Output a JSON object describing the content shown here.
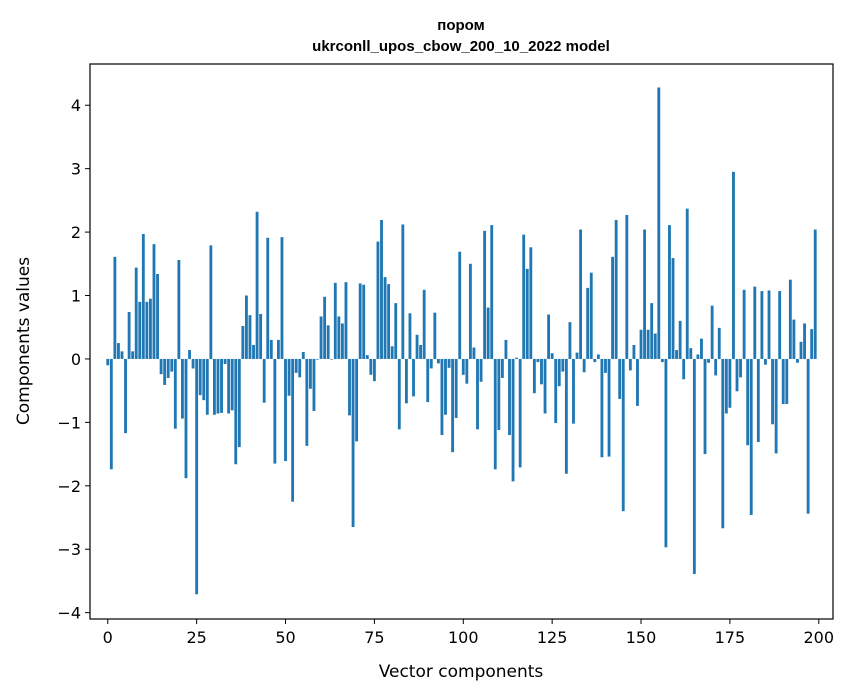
{
  "chart_data": {
    "type": "bar",
    "title": "пором",
    "subtitle": "ukrconll_upos_cbow_200_10_2022 model",
    "xlabel": "Vector components",
    "ylabel": "Components values",
    "xlim": [
      -5,
      204
    ],
    "ylim": [
      -4.1,
      4.65
    ],
    "xticks": [
      0,
      25,
      50,
      75,
      100,
      125,
      150,
      175,
      200
    ],
    "yticks": [
      -4,
      -3,
      -2,
      -1,
      0,
      1,
      2,
      3,
      4
    ],
    "xtick_labels": [
      "0",
      "25",
      "50",
      "75",
      "100",
      "125",
      "150",
      "175",
      "200"
    ],
    "ytick_labels": [
      "−4",
      "−3",
      "−2",
      "−1",
      "0",
      "1",
      "2",
      "3",
      "4"
    ],
    "bar_color": "#1f77b4",
    "grid": false,
    "x": [
      0,
      1,
      2,
      3,
      4,
      5,
      6,
      7,
      8,
      9,
      10,
      11,
      12,
      13,
      14,
      15,
      16,
      17,
      18,
      19,
      20,
      21,
      22,
      23,
      24,
      25,
      26,
      27,
      28,
      29,
      30,
      31,
      32,
      33,
      34,
      35,
      36,
      37,
      38,
      39,
      40,
      41,
      42,
      43,
      44,
      45,
      46,
      47,
      48,
      49,
      50,
      51,
      52,
      53,
      54,
      55,
      56,
      57,
      58,
      59,
      60,
      61,
      62,
      63,
      64,
      65,
      66,
      67,
      68,
      69,
      70,
      71,
      72,
      73,
      74,
      75,
      76,
      77,
      78,
      79,
      80,
      81,
      82,
      83,
      84,
      85,
      86,
      87,
      88,
      89,
      90,
      91,
      92,
      93,
      94,
      95,
      96,
      97,
      98,
      99,
      100,
      101,
      102,
      103,
      104,
      105,
      106,
      107,
      108,
      109,
      110,
      111,
      112,
      113,
      114,
      115,
      116,
      117,
      118,
      119,
      120,
      121,
      122,
      123,
      124,
      125,
      126,
      127,
      128,
      129,
      130,
      131,
      132,
      133,
      134,
      135,
      136,
      137,
      138,
      139,
      140,
      141,
      142,
      143,
      144,
      145,
      146,
      147,
      148,
      149,
      150,
      151,
      152,
      153,
      154,
      155,
      156,
      157,
      158,
      159,
      160,
      161,
      162,
      163,
      164,
      165,
      166,
      167,
      168,
      169,
      170,
      171,
      172,
      173,
      174,
      175,
      176,
      177,
      178,
      179,
      180,
      181,
      182,
      183,
      184,
      185,
      186,
      187,
      188,
      189,
      190,
      191,
      192,
      193,
      194,
      195,
      196,
      197,
      198,
      199
    ],
    "values": [
      -0.1,
      -1.74,
      1.61,
      0.25,
      0.12,
      -1.17,
      0.74,
      0.12,
      1.44,
      0.9,
      1.97,
      0.9,
      0.95,
      1.81,
      1.34,
      -0.24,
      -0.41,
      -0.3,
      -0.2,
      -1.1,
      1.56,
      -0.94,
      -1.88,
      0.14,
      -0.15,
      -3.71,
      -0.57,
      -0.65,
      -0.88,
      1.79,
      -0.88,
      -0.86,
      -0.85,
      -0.08,
      -0.86,
      -0.81,
      -1.66,
      -1.39,
      0.52,
      1.0,
      0.69,
      0.22,
      2.32,
      0.71,
      -0.69,
      1.91,
      0.3,
      -1.65,
      0.3,
      1.92,
      -1.61,
      -0.58,
      -2.25,
      -0.22,
      -0.29,
      0.11,
      -1.37,
      -0.47,
      -0.82,
      -0.01,
      0.67,
      0.98,
      0.53,
      -0.01,
      1.2,
      0.67,
      0.56,
      1.21,
      -0.89,
      -2.65,
      -1.3,
      1.19,
      1.17,
      0.06,
      -0.25,
      -0.35,
      1.85,
      2.19,
      1.29,
      1.18,
      0.2,
      0.88,
      -1.11,
      2.12,
      -0.7,
      0.72,
      -0.59,
      0.38,
      0.22,
      1.09,
      -0.68,
      -0.15,
      0.73,
      -0.07,
      -1.2,
      -0.88,
      -0.14,
      -1.47,
      -0.93,
      1.69,
      -0.25,
      -0.39,
      1.5,
      0.18,
      -1.11,
      -0.36,
      2.02,
      0.81,
      2.11,
      -1.74,
      -1.12,
      -0.3,
      0.3,
      -1.2,
      -1.93,
      0.02,
      -1.71,
      1.96,
      1.42,
      1.76,
      -0.54,
      -0.05,
      -0.4,
      -0.86,
      0.7,
      0.09,
      -1.01,
      -0.43,
      -0.2,
      -1.81,
      0.58,
      -1.02,
      0.1,
      2.04,
      -0.21,
      1.12,
      1.36,
      -0.05,
      0.07,
      -1.55,
      -0.22,
      -1.54,
      1.61,
      2.19,
      -0.63,
      -2.4,
      2.27,
      -0.18,
      0.22,
      -0.74,
      0.46,
      2.04,
      0.46,
      0.88,
      0.4,
      4.28,
      -0.05,
      -2.97,
      2.11,
      1.59,
      0.14,
      0.6,
      -0.32,
      2.37,
      0.17,
      -3.39,
      0.07,
      0.32,
      -1.5,
      -0.06,
      0.84,
      -0.26,
      0.49,
      -2.67,
      -0.86,
      -0.77,
      2.95,
      -0.51,
      -0.29,
      1.09,
      -1.36,
      -2.46,
      1.14,
      -1.31,
      1.07,
      -0.09,
      1.08,
      -1.03,
      -1.49,
      1.07,
      -0.71,
      -0.71,
      1.25,
      0.62,
      -0.06,
      0.27,
      0.56,
      -2.44,
      0.47,
      2.04
    ]
  }
}
